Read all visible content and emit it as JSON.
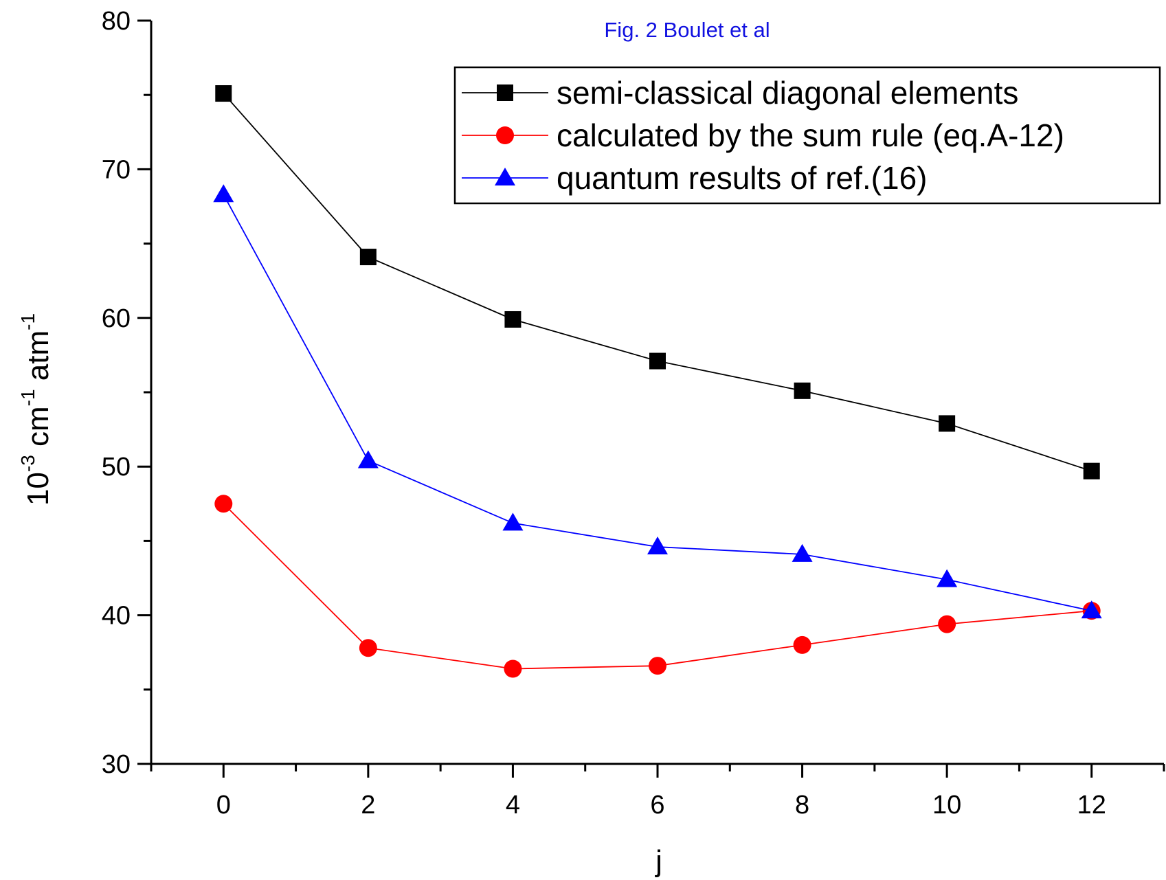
{
  "figure_note": "Fig. 2 Boulet et al",
  "colors": {
    "note": "#1010e0",
    "axis": "#000000"
  },
  "chart_data": {
    "type": "line",
    "title": "",
    "xlabel": "j",
    "ylabel_parts": {
      "p1": "10",
      "e1": "-3",
      "p2": " cm",
      "e2": "-1",
      "p3": " atm",
      "e3": "-1"
    },
    "xlim": [
      -1,
      13
    ],
    "ylim": [
      30,
      80
    ],
    "x_major_ticks": [
      0,
      2,
      4,
      6,
      8,
      10,
      12
    ],
    "x_minor_ticks": [
      -1,
      1,
      3,
      5,
      7,
      9,
      11,
      13
    ],
    "y_major_ticks": [
      30,
      40,
      50,
      60,
      70,
      80
    ],
    "y_minor_ticks": [
      35,
      45,
      55,
      65,
      75
    ],
    "x_tick_labels": [
      "0",
      "2",
      "4",
      "6",
      "8",
      "10",
      "12"
    ],
    "y_tick_labels": [
      "30",
      "40",
      "50",
      "60",
      "70",
      "80"
    ],
    "x": [
      0,
      2,
      4,
      6,
      8,
      10,
      12
    ],
    "legend_position": "top-right",
    "series": [
      {
        "name": "semi-classical diagonal elements",
        "color": "#000000",
        "marker": "square",
        "values": [
          75.1,
          64.1,
          59.9,
          57.1,
          55.1,
          52.9,
          49.7
        ]
      },
      {
        "name": "calculated by the sum rule (eq.A-12)",
        "color": "#ff0000",
        "marker": "circle",
        "values": [
          47.5,
          37.8,
          36.4,
          36.6,
          38.0,
          39.4,
          40.3
        ]
      },
      {
        "name": "quantum results of ref.(16)",
        "color": "#0000ff",
        "marker": "triangle",
        "values": [
          68.3,
          50.4,
          46.2,
          44.6,
          44.1,
          42.4,
          40.3
        ]
      }
    ]
  }
}
